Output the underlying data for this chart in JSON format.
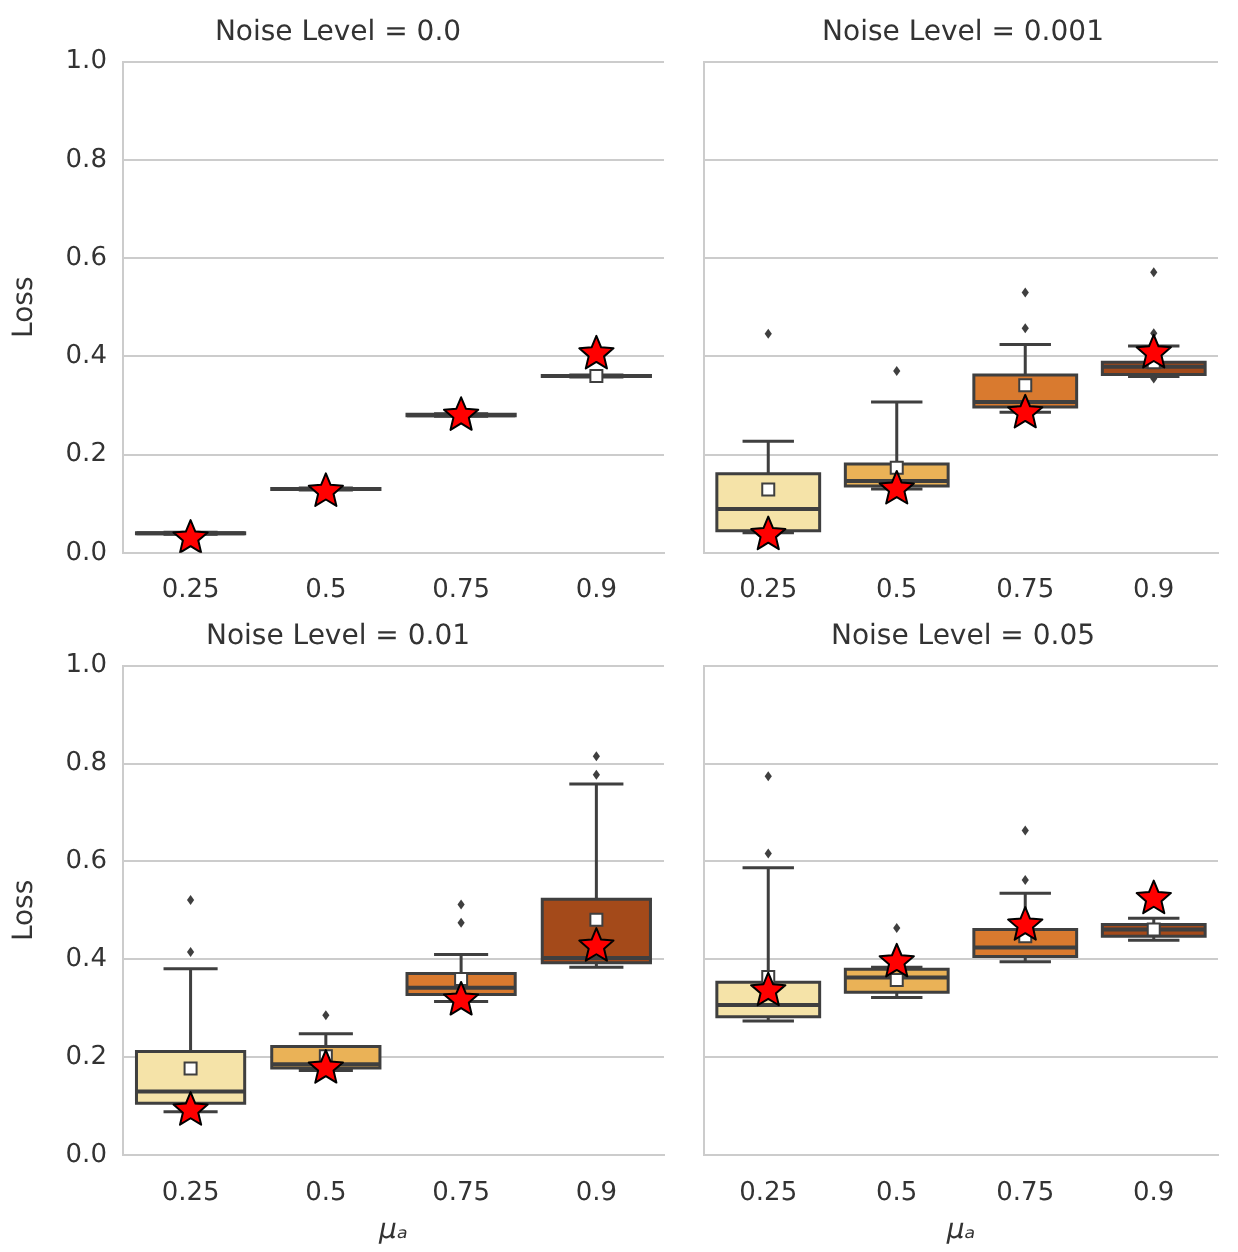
{
  "chart_data": [
    {
      "type": "box",
      "title": "Noise Level = 0.0",
      "ylabel": "Loss",
      "categories": [
        "0.25",
        "0.5",
        "0.75",
        "0.9"
      ],
      "colors": [
        "#f5e3a8",
        "#eab257",
        "#d97a2f",
        "#a44a1a"
      ],
      "boxes": [
        {
          "low": 0.038,
          "q1": 0.039,
          "median": 0.04,
          "q3": 0.041,
          "high": 0.042
        },
        {
          "low": 0.128,
          "q1": 0.129,
          "median": 0.13,
          "q3": 0.131,
          "high": 0.132
        },
        {
          "low": 0.278,
          "q1": 0.279,
          "median": 0.28,
          "q3": 0.282,
          "high": 0.283
        },
        {
          "low": 0.358,
          "q1": 0.359,
          "median": 0.36,
          "q3": 0.361,
          "high": 0.362,
          "mean": 0.36
        }
      ],
      "series": [
        {
          "type": "scatter",
          "marker": "star",
          "color": "#ff0000",
          "x": [
            "0.25",
            "0.5",
            "0.75",
            "0.9"
          ],
          "values": [
            0.03,
            0.125,
            0.28,
            0.405
          ]
        }
      ],
      "ylim": [
        0,
        1
      ],
      "yticks": [
        {
          "value": 0,
          "label": "0.0"
        },
        {
          "value": 0.2,
          "label": "0.2"
        },
        {
          "value": 0.4,
          "label": "0.4"
        },
        {
          "value": 0.6,
          "label": "0.6"
        },
        {
          "value": 0.8,
          "label": "0.8"
        },
        {
          "value": 1,
          "label": "1.0"
        }
      ],
      "grid": "y",
      "legend": false
    },
    {
      "type": "box",
      "title": "Noise Level = 0.001",
      "categories": [
        "0.25",
        "0.5",
        "0.75",
        "0.9"
      ],
      "colors": [
        "#f5e3a8",
        "#eab257",
        "#d97a2f",
        "#a44a1a"
      ],
      "boxes": [
        {
          "low": 0.041,
          "q1": 0.045,
          "median": 0.089,
          "q3": 0.161,
          "high": 0.227,
          "mean": 0.129,
          "outliers": [
            0.446
          ]
        },
        {
          "low": 0.13,
          "q1": 0.136,
          "median": 0.146,
          "q3": 0.181,
          "high": 0.307,
          "mean": 0.173,
          "outliers": [
            0.37
          ]
        },
        {
          "low": 0.286,
          "q1": 0.297,
          "median": 0.307,
          "q3": 0.362,
          "high": 0.424,
          "mean": 0.341,
          "outliers": [
            0.457,
            0.53
          ]
        },
        {
          "low": 0.359,
          "q1": 0.363,
          "median": 0.379,
          "q3": 0.388,
          "high": 0.421,
          "mean": 0.388,
          "outliers": [
            0.355,
            0.447,
            0.571
          ]
        }
      ],
      "series": [
        {
          "type": "scatter",
          "marker": "star",
          "color": "#ff0000",
          "x": [
            "0.25",
            "0.5",
            "0.75",
            "0.9"
          ],
          "values": [
            0.037,
            0.13,
            0.285,
            0.407
          ]
        }
      ],
      "ylim": [
        0,
        1
      ],
      "yticks": [
        0,
        0.2,
        0.4,
        0.6,
        0.8,
        1
      ],
      "grid": "y",
      "legend": false,
      "tick_labels": "x"
    },
    {
      "type": "box",
      "title": "Noise Level = 0.01",
      "ylabel": "Loss",
      "xlabel": "μₐ",
      "categories": [
        "0.25",
        "0.5",
        "0.75",
        "0.9"
      ],
      "colors": [
        "#f5e3a8",
        "#eab257",
        "#d97a2f",
        "#a44a1a"
      ],
      "boxes": [
        {
          "low": 0.089,
          "q1": 0.106,
          "median": 0.13,
          "q3": 0.212,
          "high": 0.381,
          "mean": 0.177,
          "outliers": [
            0.415,
            0.521
          ]
        },
        {
          "low": 0.173,
          "q1": 0.178,
          "median": 0.186,
          "q3": 0.222,
          "high": 0.248,
          "mean": 0.202,
          "outliers": [
            0.286
          ]
        },
        {
          "low": 0.314,
          "q1": 0.328,
          "median": 0.342,
          "q3": 0.371,
          "high": 0.41,
          "mean": 0.36,
          "outliers": [
            0.475,
            0.512
          ]
        },
        {
          "low": 0.384,
          "q1": 0.393,
          "median": 0.403,
          "q3": 0.523,
          "high": 0.758,
          "mean": 0.481,
          "outliers": [
            0.777,
            0.815
          ]
        }
      ],
      "series": [
        {
          "type": "scatter",
          "marker": "star",
          "color": "#ff0000",
          "x": [
            "0.25",
            "0.5",
            "0.75",
            "0.9"
          ],
          "values": [
            0.092,
            0.178,
            0.317,
            0.427
          ]
        }
      ],
      "ylim": [
        0,
        1
      ],
      "yticks": [
        {
          "value": 0,
          "label": "0.0"
        },
        {
          "value": 0.2,
          "label": "0.2"
        },
        {
          "value": 0.4,
          "label": "0.4"
        },
        {
          "value": 0.6,
          "label": "0.6"
        },
        {
          "value": 0.8,
          "label": "0.8"
        },
        {
          "value": 1,
          "label": "1.0"
        }
      ],
      "grid": "y",
      "legend": false
    },
    {
      "type": "box",
      "title": "Noise Level = 0.05",
      "xlabel": "μₐ",
      "categories": [
        "0.25",
        "0.5",
        "0.75",
        "0.9"
      ],
      "colors": [
        "#f5e3a8",
        "#eab257",
        "#d97a2f",
        "#a44a1a"
      ],
      "boxes": [
        {
          "low": 0.274,
          "q1": 0.283,
          "median": 0.307,
          "q3": 0.353,
          "high": 0.587,
          "mean": 0.364,
          "outliers": [
            0.616,
            0.774
          ]
        },
        {
          "low": 0.322,
          "q1": 0.333,
          "median": 0.363,
          "q3": 0.38,
          "high": 0.384,
          "mean": 0.358,
          "outliers": [
            0.464
          ]
        },
        {
          "low": 0.395,
          "q1": 0.406,
          "median": 0.424,
          "q3": 0.461,
          "high": 0.535,
          "mean": 0.447,
          "outliers": [
            0.562,
            0.663
          ]
        },
        {
          "low": 0.439,
          "q1": 0.447,
          "median": 0.461,
          "q3": 0.471,
          "high": 0.484,
          "mean": 0.461
        }
      ],
      "series": [
        {
          "type": "scatter",
          "marker": "star",
          "color": "#ff0000",
          "x": [
            "0.25",
            "0.5",
            "0.75",
            "0.9"
          ],
          "values": [
            0.336,
            0.395,
            0.47,
            0.524
          ]
        }
      ],
      "ylim": [
        0,
        1
      ],
      "yticks": [
        0,
        0.2,
        0.4,
        0.6,
        0.8,
        1
      ],
      "grid": "y",
      "legend": false,
      "tick_labels": "x"
    }
  ]
}
